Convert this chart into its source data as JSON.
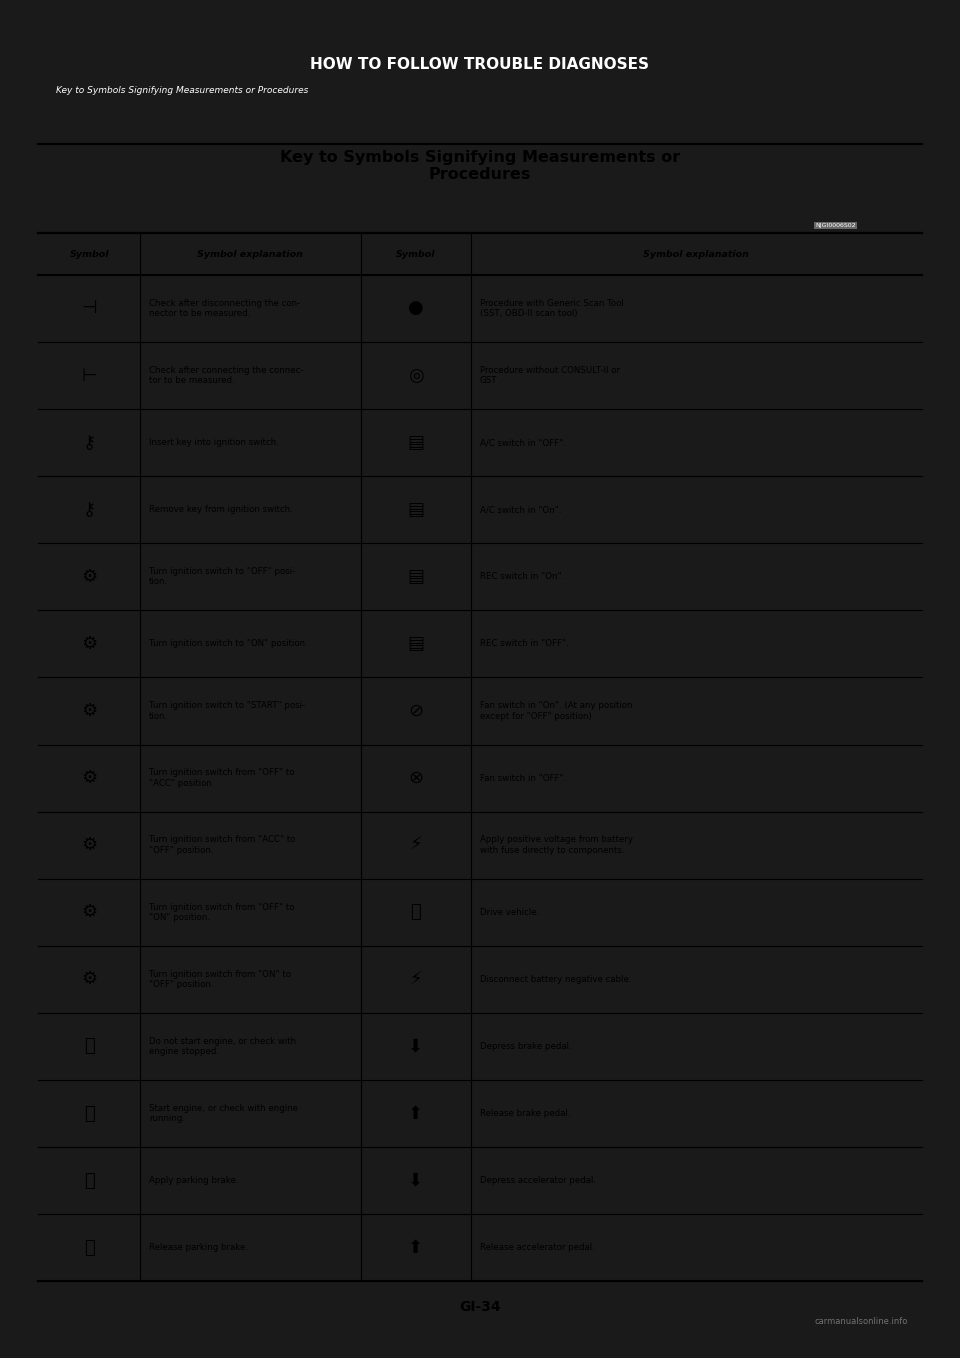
{
  "page_bg": "#ffffff",
  "outer_bg": "#1a1a1a",
  "header_title": "HOW TO FOLLOW TROUBLE DIAGNOSES",
  "header_subtitle": "Key to Symbols Signifying Measurements or Procedures",
  "table_title": "Key to Symbols Signifying Measurements or\nProcedures",
  "table_title_ref": "NJGI0006S02",
  "col_headers": [
    "Symbol",
    "Symbol explanation",
    "Symbol",
    "Symbol explanation"
  ],
  "rows": [
    {
      "sym1": "connector_disconnect",
      "text1": "Check after disconnecting the con-\nnector to be measured.",
      "sym2": "circle_solid",
      "text2": "Procedure with Generic Scan Tool\n(SST, OBD-II scan tool)"
    },
    {
      "sym1": "connector_connect",
      "text1": "Check after connecting the connec-\ntor to be measured.",
      "sym2": "circle_dotted",
      "text2": "Procedure without CONSULT-II or\nGST"
    },
    {
      "sym1": "key_insert",
      "text1": "Insert key into ignition switch.",
      "sym2": "switch_off_top",
      "text2": "A/C switch in \"OFF\"."
    },
    {
      "sym1": "key_remove",
      "text1": "Remove key from ignition switch.",
      "sym2": "switch_on_top",
      "text2": "A/C switch in \"On\"."
    },
    {
      "sym1": "ign_off",
      "text1": "Turn ignition switch to \"OFF\" posi-\ntion.",
      "sym2": "rec_switch_on",
      "text2": "REC switch in \"On\"."
    },
    {
      "sym1": "ign_on",
      "text1": "Turn ignition switch to \"ON\" position.",
      "sym2": "rec_switch_off",
      "text2": "REC switch in \"OFF\"."
    },
    {
      "sym1": "ign_start",
      "text1": "Turn ignition switch to \"START\" posi-\ntion.",
      "sym2": "fan_on",
      "text2": "Fan switch in \"On\". (At any position\nexcept for \"OFF\" position)"
    },
    {
      "sym1": "ign_off_to_acc",
      "text1": "Turn ignition switch from \"OFF\" to\n\"ACC\" position.",
      "sym2": "fan_off",
      "text2": "Fan switch in \"OFF\"."
    },
    {
      "sym1": "ign_acc_to_off",
      "text1": "Turn ignition switch from \"ACC\" to\n\"OFF\" position.",
      "sym2": "battery_apply",
      "text2": "Apply positive voltage from battery\nwith fuse directly to components."
    },
    {
      "sym1": "ign_off_to_on",
      "text1": "Turn ignition switch from \"OFF\" to\n\"ON\" position.",
      "sym2": "drive_vehicle",
      "text2": "Drive vehicle."
    },
    {
      "sym1": "ign_on_to_off",
      "text1": "Turn ignition switch from \"ON\" to\n\"OFF\" position.",
      "sym2": "battery_disconnect",
      "text2": "Disconnect battery negative cable."
    },
    {
      "sym1": "engine_stop",
      "text1": "Do not start engine, or check with\nengine stopped.",
      "sym2": "brake_depress",
      "text2": "Depress brake pedal."
    },
    {
      "sym1": "engine_start",
      "text1": "Start engine, or check with engine\nrunning.",
      "sym2": "brake_release",
      "text2": "Release brake pedal."
    },
    {
      "sym1": "parking_apply",
      "text1": "Apply parking brake.",
      "sym2": "accel_depress",
      "text2": "Depress accelerator pedal."
    },
    {
      "sym1": "parking_release",
      "text1": "Release parking brake.",
      "sym2": "accel_release",
      "text2": "Release accelerator pedal."
    }
  ],
  "footer_text": "GI-34",
  "watermark": "carmanualsonline.info",
  "font_color": "#000000",
  "line_color": "#000000",
  "header_bg": "#1a1a1a",
  "content_bg": "#ffffff"
}
